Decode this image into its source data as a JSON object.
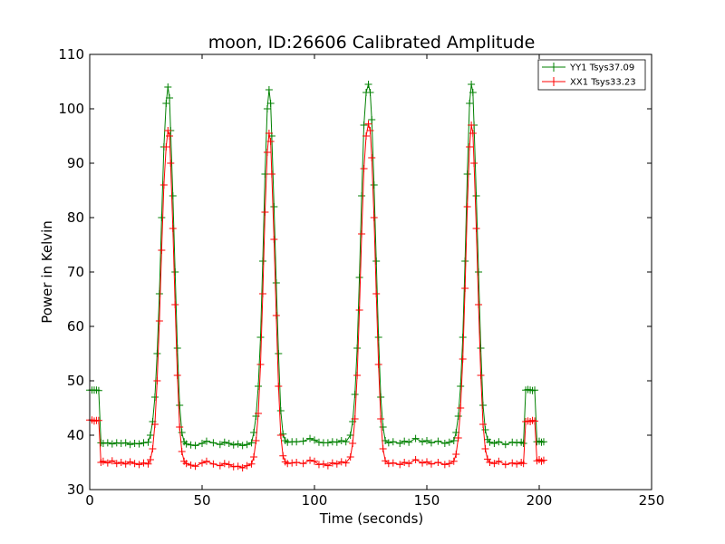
{
  "chart_data": {
    "type": "line",
    "title": "moon, ID:26606 Calibrated Amplitude",
    "xlabel": "Time (seconds)",
    "ylabel": "Power in Kelvin",
    "xlim": [
      0,
      250
    ],
    "ylim": [
      30,
      110
    ],
    "xticks": [
      0,
      50,
      100,
      150,
      200,
      250
    ],
    "yticks": [
      30,
      40,
      50,
      60,
      70,
      80,
      90,
      100,
      110
    ],
    "grid": false,
    "legend_position": "top-right",
    "markers": "plus",
    "series": [
      {
        "name": "YY1 Tsys37.09",
        "color": "#008000",
        "points": [
          [
            0,
            48.3
          ],
          [
            1,
            48.3
          ],
          [
            2,
            48.3
          ],
          [
            3,
            48.3
          ],
          [
            4,
            48.2
          ],
          [
            5,
            38.6
          ],
          [
            6,
            38.5
          ],
          [
            8,
            38.6
          ],
          [
            10,
            38.4
          ],
          [
            12,
            38.6
          ],
          [
            14,
            38.5
          ],
          [
            16,
            38.6
          ],
          [
            18,
            38.3
          ],
          [
            20,
            38.5
          ],
          [
            22,
            38.4
          ],
          [
            24,
            38.6
          ],
          [
            26,
            38.7
          ],
          [
            27,
            40
          ],
          [
            28,
            42.5
          ],
          [
            29,
            47
          ],
          [
            30,
            55
          ],
          [
            31,
            66
          ],
          [
            32,
            80
          ],
          [
            33,
            93
          ],
          [
            34,
            101
          ],
          [
            34.8,
            104
          ],
          [
            35.5,
            102
          ],
          [
            36,
            96
          ],
          [
            37,
            84
          ],
          [
            38,
            70
          ],
          [
            39,
            56
          ],
          [
            40,
            45.5
          ],
          [
            41,
            40.5
          ],
          [
            42,
            38.8
          ],
          [
            43,
            38.4
          ],
          [
            45,
            38.2
          ],
          [
            47,
            38.1
          ],
          [
            50,
            38.5
          ],
          [
            52,
            38.9
          ],
          [
            55,
            38.6
          ],
          [
            58,
            38.3
          ],
          [
            60,
            38.7
          ],
          [
            62,
            38.5
          ],
          [
            64,
            38.2
          ],
          [
            66,
            38.4
          ],
          [
            68,
            38.1
          ],
          [
            70,
            38.3
          ],
          [
            72,
            38.6
          ],
          [
            73,
            40.5
          ],
          [
            74,
            43.5
          ],
          [
            75,
            49
          ],
          [
            76,
            58
          ],
          [
            77,
            72
          ],
          [
            78,
            88
          ],
          [
            79,
            100
          ],
          [
            79.8,
            103.5
          ],
          [
            80.5,
            101
          ],
          [
            81,
            95
          ],
          [
            82,
            82
          ],
          [
            83,
            68
          ],
          [
            84,
            55
          ],
          [
            85,
            44.5
          ],
          [
            86,
            40.2
          ],
          [
            87,
            39
          ],
          [
            88,
            38.7
          ],
          [
            90,
            38.8
          ],
          [
            92,
            38.8
          ],
          [
            95,
            38.9
          ],
          [
            98,
            39.4
          ],
          [
            100,
            39.1
          ],
          [
            102,
            38.7
          ],
          [
            104,
            38.6
          ],
          [
            106,
            38.6
          ],
          [
            108,
            38.8
          ],
          [
            110,
            38.7
          ],
          [
            112,
            39
          ],
          [
            114,
            38.8
          ],
          [
            116,
            40
          ],
          [
            117,
            42.5
          ],
          [
            118,
            47.5
          ],
          [
            119,
            56
          ],
          [
            120,
            69
          ],
          [
            121,
            84
          ],
          [
            122,
            97
          ],
          [
            123,
            103
          ],
          [
            124,
            104.5
          ],
          [
            124.8,
            103
          ],
          [
            125.5,
            98
          ],
          [
            126.5,
            86
          ],
          [
            127.5,
            72
          ],
          [
            128.5,
            58
          ],
          [
            129.5,
            47
          ],
          [
            130.5,
            41.5
          ],
          [
            131.5,
            39
          ],
          [
            133,
            38.6
          ],
          [
            135,
            38.8
          ],
          [
            138,
            38.5
          ],
          [
            140,
            38.9
          ],
          [
            142,
            38.7
          ],
          [
            145,
            39.4
          ],
          [
            148,
            38.8
          ],
          [
            150,
            39
          ],
          [
            152,
            38.6
          ],
          [
            155,
            38.9
          ],
          [
            158,
            38.5
          ],
          [
            160,
            38.7
          ],
          [
            162,
            39
          ],
          [
            163,
            40.5
          ],
          [
            164,
            43.5
          ],
          [
            165,
            49
          ],
          [
            166,
            58
          ],
          [
            167,
            72
          ],
          [
            168,
            88
          ],
          [
            169,
            101
          ],
          [
            169.8,
            104.5
          ],
          [
            170.5,
            103
          ],
          [
            171,
            97
          ],
          [
            172,
            84
          ],
          [
            173,
            70
          ],
          [
            174,
            56
          ],
          [
            175,
            45.5
          ],
          [
            176,
            41
          ],
          [
            177,
            39.2
          ],
          [
            178,
            38.7
          ],
          [
            180,
            38.5
          ],
          [
            182,
            38.8
          ],
          [
            185,
            38.3
          ],
          [
            188,
            38.7
          ],
          [
            190,
            38.6
          ],
          [
            192,
            38.7
          ],
          [
            193,
            38.5
          ],
          [
            194,
            48.3
          ],
          [
            195,
            48.4
          ],
          [
            196,
            48.3
          ],
          [
            197,
            48.2
          ],
          [
            198,
            48.3
          ],
          [
            199,
            38.8
          ],
          [
            200,
            38.9
          ],
          [
            201,
            38.7
          ],
          [
            202,
            38.8
          ]
        ]
      },
      {
        "name": "XX1 Tsys33.23",
        "color": "#ff0000",
        "points": [
          [
            0,
            42.8
          ],
          [
            1,
            42.8
          ],
          [
            2,
            42.6
          ],
          [
            3,
            42.7
          ],
          [
            4,
            42.7
          ],
          [
            5,
            35
          ],
          [
            6,
            35.2
          ],
          [
            8,
            34.9
          ],
          [
            10,
            35.3
          ],
          [
            12,
            34.8
          ],
          [
            14,
            35
          ],
          [
            16,
            34.7
          ],
          [
            18,
            35.1
          ],
          [
            20,
            34.8
          ],
          [
            22,
            34.6
          ],
          [
            24,
            34.9
          ],
          [
            26,
            34.7
          ],
          [
            27,
            35.5
          ],
          [
            28,
            37.5
          ],
          [
            29,
            42
          ],
          [
            30,
            50
          ],
          [
            31,
            61
          ],
          [
            32,
            74
          ],
          [
            33,
            86
          ],
          [
            34,
            93
          ],
          [
            34.8,
            96
          ],
          [
            35.5,
            95
          ],
          [
            36,
            90
          ],
          [
            37,
            78
          ],
          [
            38,
            64
          ],
          [
            39,
            51
          ],
          [
            40,
            41.5
          ],
          [
            41,
            37
          ],
          [
            42,
            35.2
          ],
          [
            43,
            34.8
          ],
          [
            45,
            34.5
          ],
          [
            47,
            34.3
          ],
          [
            50,
            34.9
          ],
          [
            52,
            35.2
          ],
          [
            55,
            34.7
          ],
          [
            58,
            34.4
          ],
          [
            60,
            34.8
          ],
          [
            62,
            34.6
          ],
          [
            64,
            34.2
          ],
          [
            66,
            34.3
          ],
          [
            68,
            34
          ],
          [
            70,
            34.4
          ],
          [
            72,
            34.7
          ],
          [
            73,
            36
          ],
          [
            74,
            39
          ],
          [
            75,
            44
          ],
          [
            76,
            53
          ],
          [
            77,
            66
          ],
          [
            78,
            81
          ],
          [
            79,
            92
          ],
          [
            79.8,
            95.5
          ],
          [
            80.5,
            94
          ],
          [
            81,
            88
          ],
          [
            82,
            76
          ],
          [
            83,
            62
          ],
          [
            84,
            49
          ],
          [
            85,
            40
          ],
          [
            86,
            36.2
          ],
          [
            87,
            35.1
          ],
          [
            88,
            34.8
          ],
          [
            90,
            34.9
          ],
          [
            92,
            35
          ],
          [
            95,
            34.8
          ],
          [
            98,
            35.4
          ],
          [
            100,
            35.2
          ],
          [
            102,
            34.6
          ],
          [
            104,
            34.7
          ],
          [
            106,
            34.4
          ],
          [
            108,
            34.9
          ],
          [
            110,
            34.7
          ],
          [
            112,
            35.1
          ],
          [
            114,
            34.9
          ],
          [
            116,
            36
          ],
          [
            117,
            38.5
          ],
          [
            118,
            43
          ],
          [
            119,
            51
          ],
          [
            120,
            63
          ],
          [
            121,
            77
          ],
          [
            122,
            89
          ],
          [
            123,
            95
          ],
          [
            124,
            97.2
          ],
          [
            124.8,
            96
          ],
          [
            125.5,
            91
          ],
          [
            126.5,
            80
          ],
          [
            127.5,
            66
          ],
          [
            128.5,
            53
          ],
          [
            129.5,
            43
          ],
          [
            130.5,
            37.5
          ],
          [
            131.5,
            35.3
          ],
          [
            133,
            34.8
          ],
          [
            135,
            34.9
          ],
          [
            138,
            34.6
          ],
          [
            140,
            35
          ],
          [
            142,
            34.8
          ],
          [
            145,
            35.5
          ],
          [
            148,
            34.9
          ],
          [
            150,
            35.1
          ],
          [
            152,
            34.7
          ],
          [
            155,
            35
          ],
          [
            158,
            34.6
          ],
          [
            160,
            34.8
          ],
          [
            162,
            35.2
          ],
          [
            163,
            36.5
          ],
          [
            164,
            39.5
          ],
          [
            165,
            45
          ],
          [
            166,
            54
          ],
          [
            167,
            67
          ],
          [
            168,
            82
          ],
          [
            169,
            93
          ],
          [
            169.8,
            97
          ],
          [
            170.5,
            95.5
          ],
          [
            171,
            90
          ],
          [
            172,
            78
          ],
          [
            173,
            64
          ],
          [
            174,
            51
          ],
          [
            175,
            42
          ],
          [
            176,
            37.5
          ],
          [
            177,
            35.6
          ],
          [
            178,
            35
          ],
          [
            180,
            34.8
          ],
          [
            182,
            35.2
          ],
          [
            185,
            34.6
          ],
          [
            188,
            34.9
          ],
          [
            190,
            34.7
          ],
          [
            192,
            35
          ],
          [
            193,
            34.8
          ],
          [
            194,
            42.5
          ],
          [
            195,
            42.6
          ],
          [
            196,
            42.5
          ],
          [
            197,
            42.7
          ],
          [
            198,
            42.6
          ],
          [
            199,
            35.3
          ],
          [
            200,
            35.5
          ],
          [
            201,
            35.2
          ],
          [
            202,
            35.4
          ]
        ]
      }
    ]
  }
}
